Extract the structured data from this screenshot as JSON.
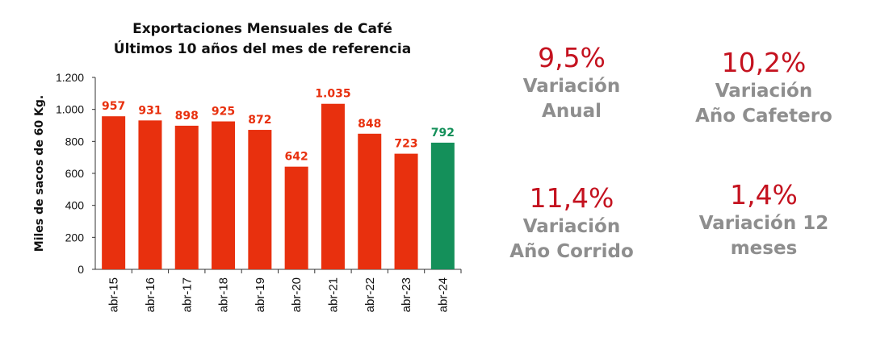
{
  "chart_data": {
    "type": "bar",
    "title": "Exportaciones Mensuales de Café",
    "subtitle": "Últimos 10 años del mes de referencia",
    "ylabel": "Miles de sacos de 60 Kg.",
    "xlabel": "",
    "categories": [
      "abr-15",
      "abr-16",
      "abr-17",
      "abr-18",
      "abr-19",
      "abr-20",
      "abr-21",
      "abr-22",
      "abr-23",
      "abr-24"
    ],
    "values": [
      957,
      931,
      898,
      925,
      872,
      642,
      1035,
      848,
      723,
      792
    ],
    "value_labels": [
      "957",
      "931",
      "898",
      "925",
      "872",
      "642",
      "1.035",
      "848",
      "723",
      "792"
    ],
    "ylim": [
      0,
      1200
    ],
    "yticks": [
      0,
      200,
      400,
      600,
      800,
      1000,
      1200
    ],
    "ytick_labels": [
      "0",
      "200",
      "400",
      "600",
      "800",
      "1.000",
      "1.200"
    ],
    "colors": {
      "default": "#e8300e",
      "highlight": "#14905a",
      "highlight_index": 9
    },
    "grid": false,
    "legend": "none"
  },
  "kpis": [
    {
      "value": "9,5%",
      "label": "Variación\nAnual"
    },
    {
      "value": "10,2%",
      "label": "Variación\nAño Cafetero"
    },
    {
      "value": "11,4%",
      "label": "Variación\nAño Corrido"
    },
    {
      "value": "1,4%",
      "label": "Variación 12\nmeses"
    }
  ],
  "kpi_value_color": "#c4121f",
  "kpi_label_color": "#8e8e8e"
}
